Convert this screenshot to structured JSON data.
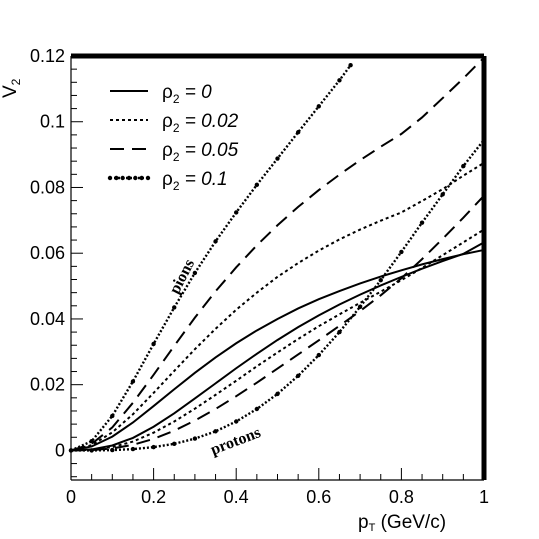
{
  "chart_data": {
    "type": "line",
    "title": "",
    "xlabel": "p_T (GeV/c)",
    "xlabel_main": "p",
    "xlabel_sub": "T",
    "xlabel_rest": " (GeV/c)",
    "ylabel": "V_2",
    "ylabel_main": "V",
    "ylabel_sub": "2",
    "xlim": [
      0,
      1
    ],
    "ylim": [
      -0.009,
      0.12
    ],
    "x_ticks": [
      0,
      0.2,
      0.4,
      0.6,
      0.8,
      1
    ],
    "x_tick_labels": [
      "0",
      "0.2",
      "0.4",
      "0.6",
      "0.8",
      "1"
    ],
    "y_ticks": [
      0,
      0.02,
      0.04,
      0.06,
      0.08,
      0.1,
      0.12
    ],
    "y_tick_labels": [
      "0",
      "0.02",
      "0.04",
      "0.06",
      "0.08",
      "0.1",
      "0.12"
    ],
    "grid": false,
    "legend_position": "top-left",
    "legend": [
      {
        "label_main": "ρ",
        "label_sub": "2",
        "label_value": " = 0",
        "style": "solid"
      },
      {
        "label_main": "ρ",
        "label_sub": "2",
        "label_value": " = 0.02",
        "style": "dotted"
      },
      {
        "label_main": "ρ",
        "label_sub": "2",
        "label_value": " = 0.05",
        "style": "dashed"
      },
      {
        "label_main": "ρ",
        "label_sub": "2",
        "label_value": " = 0.1",
        "style": "dotted-circles"
      }
    ],
    "annotations": {
      "pions": "pions",
      "protons": "protons"
    },
    "series": [
      {
        "group": "pions",
        "style": "solid",
        "x": [
          0,
          0.05,
          0.1,
          0.15,
          0.2,
          0.25,
          0.3,
          0.35,
          0.4,
          0.45,
          0.5,
          0.55,
          0.6,
          0.65,
          0.7,
          0.75,
          0.8,
          0.85,
          0.9,
          0.95,
          1
        ],
        "y": [
          0,
          0.0012,
          0.0042,
          0.0085,
          0.0135,
          0.0186,
          0.0236,
          0.0283,
          0.0326,
          0.0365,
          0.04,
          0.0432,
          0.046,
          0.0485,
          0.0508,
          0.0529,
          0.0548,
          0.0566,
          0.0582,
          0.0597,
          0.061
        ]
      },
      {
        "group": "pions",
        "style": "dotted",
        "x": [
          0,
          0.05,
          0.1,
          0.15,
          0.2,
          0.25,
          0.3,
          0.35,
          0.4,
          0.45,
          0.5,
          0.55,
          0.6,
          0.65,
          0.7,
          0.75,
          0.8,
          0.85,
          0.9,
          0.95,
          1
        ],
        "y": [
          0,
          0.0016,
          0.0055,
          0.011,
          0.0175,
          0.0242,
          0.0308,
          0.037,
          0.0428,
          0.048,
          0.0528,
          0.057,
          0.0608,
          0.0642,
          0.0672,
          0.0699,
          0.0724,
          0.0759,
          0.0795,
          0.0836,
          0.0875
        ]
      },
      {
        "group": "pions",
        "style": "dashed",
        "x": [
          0,
          0.05,
          0.1,
          0.15,
          0.2,
          0.25,
          0.3,
          0.35,
          0.4,
          0.45,
          0.5,
          0.55,
          0.6,
          0.65,
          0.7,
          0.75,
          0.8,
          0.85,
          0.9,
          0.95,
          1
        ],
        "y": [
          0,
          0.002,
          0.007,
          0.0145,
          0.023,
          0.0318,
          0.0404,
          0.0484,
          0.0557,
          0.0624,
          0.0685,
          0.0741,
          0.0792,
          0.0839,
          0.0883,
          0.0924,
          0.0963,
          0.1013,
          0.1072,
          0.1132,
          0.1195
        ]
      },
      {
        "group": "pions",
        "style": "dotted-circles",
        "x": [
          0,
          0.05,
          0.1,
          0.15,
          0.2,
          0.25,
          0.3,
          0.35,
          0.4,
          0.45,
          0.5,
          0.55,
          0.6,
          0.65,
          0.677
        ],
        "y": [
          0,
          0.0028,
          0.0105,
          0.021,
          0.0324,
          0.0435,
          0.054,
          0.0636,
          0.0724,
          0.0808,
          0.0888,
          0.0968,
          0.1047,
          0.1126,
          0.1172
        ]
      },
      {
        "group": "protons",
        "style": "solid",
        "x": [
          0,
          0.05,
          0.1,
          0.15,
          0.2,
          0.25,
          0.3,
          0.35,
          0.4,
          0.45,
          0.5,
          0.55,
          0.6,
          0.65,
          0.7,
          0.75,
          0.8,
          0.85,
          0.9,
          0.95,
          1
        ],
        "y": [
          0,
          0.0003,
          0.0015,
          0.0038,
          0.0072,
          0.0113,
          0.0158,
          0.0204,
          0.025,
          0.0294,
          0.0336,
          0.0375,
          0.0411,
          0.0444,
          0.0474,
          0.0502,
          0.0528,
          0.0553,
          0.0576,
          0.0598,
          0.0633
        ]
      },
      {
        "group": "protons",
        "style": "dotted",
        "x": [
          0,
          0.05,
          0.1,
          0.15,
          0.2,
          0.25,
          0.3,
          0.35,
          0.4,
          0.45,
          0.5,
          0.55,
          0.6,
          0.65,
          0.7,
          0.75,
          0.8,
          0.85,
          0.9,
          0.95,
          1
        ],
        "y": [
          0,
          0.0002,
          0.001,
          0.0027,
          0.0054,
          0.0088,
          0.0127,
          0.0169,
          0.0212,
          0.0256,
          0.0298,
          0.0339,
          0.0378,
          0.0414,
          0.0449,
          0.0483,
          0.0518,
          0.0555,
          0.0594,
          0.0633,
          0.0672
        ]
      },
      {
        "group": "protons",
        "style": "dashed",
        "x": [
          0,
          0.05,
          0.1,
          0.15,
          0.2,
          0.25,
          0.3,
          0.35,
          0.4,
          0.45,
          0.5,
          0.55,
          0.6,
          0.65,
          0.7,
          0.75,
          0.8,
          0.85,
          0.9,
          0.95,
          1
        ],
        "y": [
          0,
          0.0001,
          0.0006,
          0.0017,
          0.0035,
          0.006,
          0.0091,
          0.0126,
          0.0165,
          0.0206,
          0.0249,
          0.0292,
          0.0335,
          0.0379,
          0.0424,
          0.0472,
          0.0524,
          0.0582,
          0.0644,
          0.0708,
          0.0775
        ]
      },
      {
        "group": "protons",
        "style": "dotted-circles",
        "x": [
          0,
          0.05,
          0.1,
          0.15,
          0.2,
          0.25,
          0.3,
          0.35,
          0.4,
          0.45,
          0.5,
          0.55,
          0.6,
          0.65,
          0.7,
          0.75,
          0.8,
          0.85,
          0.9,
          0.95,
          1
        ],
        "y": [
          0,
          0,
          0.0001,
          0.0004,
          0.001,
          0.002,
          0.0036,
          0.0058,
          0.0088,
          0.0126,
          0.0172,
          0.0227,
          0.029,
          0.036,
          0.0437,
          0.0518,
          0.0604,
          0.0693,
          0.0779,
          0.0865,
          0.0945
        ]
      }
    ]
  }
}
